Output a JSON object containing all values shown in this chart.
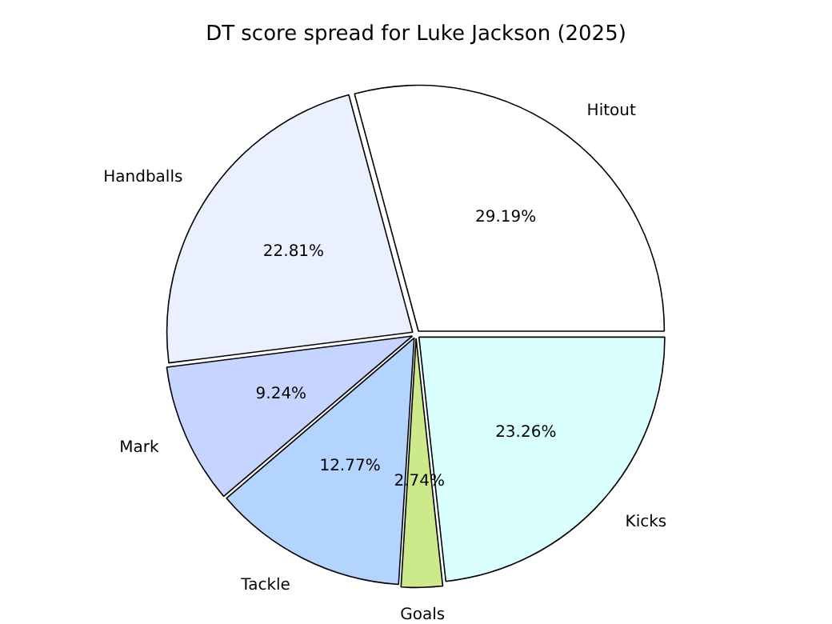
{
  "chart_data": {
    "type": "pie",
    "title": "DT score spread for Luke Jackson (2025)",
    "categories": [
      "Hitout",
      "Handballs",
      "Mark",
      "Tackle",
      "Goals",
      "Kicks"
    ],
    "values": [
      29.19,
      22.81,
      9.24,
      12.77,
      2.74,
      23.26
    ],
    "colors": [
      "#ffffff",
      "#eaf0ff",
      "#c6d5ff",
      "#b3d4ff",
      "#cdea8a",
      "#d9ffff"
    ],
    "value_labels": [
      "29.19%",
      "22.81%",
      "9.24%",
      "12.77%",
      "2.74%",
      "23.26%"
    ],
    "legend": false
  }
}
